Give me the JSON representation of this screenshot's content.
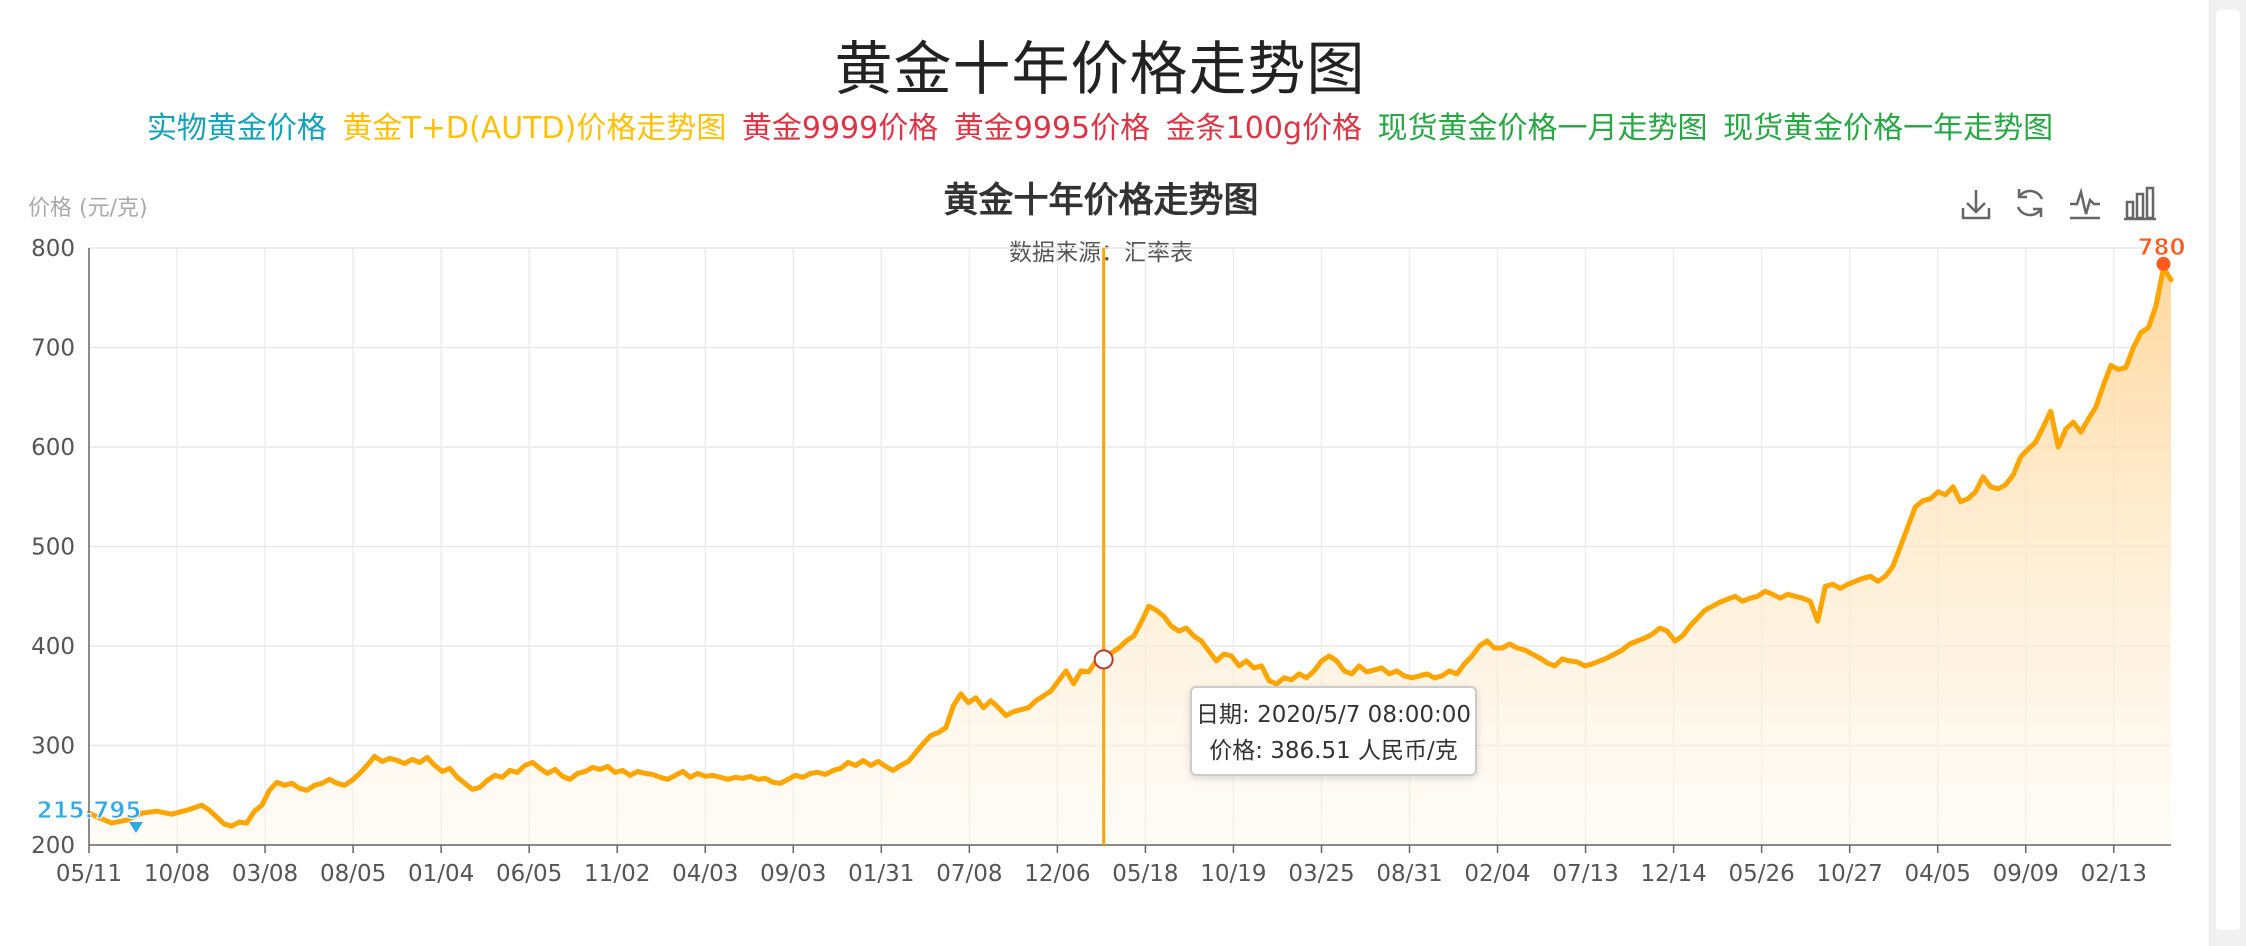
{
  "page": {
    "title": "黄金十年价格走势图",
    "links": [
      {
        "label": "实物黄金价格",
        "color": "#17a2b8"
      },
      {
        "label": "黄金T+D(AUTD)价格走势图",
        "color": "#ffc107"
      },
      {
        "label": "黄金9999价格",
        "color": "#dc3545"
      },
      {
        "label": "黄金9995价格",
        "color": "#dc3545"
      },
      {
        "label": "金条100g价格",
        "color": "#dc3545"
      },
      {
        "label": "现货黄金价格一月走势图",
        "color": "#28a745"
      },
      {
        "label": "现货黄金价格一年走势图",
        "color": "#28a745"
      }
    ]
  },
  "toolbar": {
    "icons": [
      "download-icon",
      "refresh-icon",
      "line-chart-icon",
      "bar-chart-icon"
    ]
  },
  "tooltip": {
    "date_line": "日期: 2020/5/7 08:00:00",
    "value_line": "价格: 386.51 人民币/克"
  },
  "chart_data": {
    "type": "area",
    "title": "黄金十年价格走势图",
    "subtitle": "数据来源：汇率表",
    "ylabel": "价格 (元/克)",
    "xlabel": "",
    "ylim": [
      200,
      800
    ],
    "yticks": [
      200,
      300,
      400,
      500,
      600,
      700,
      800
    ],
    "xtick_labels": [
      "05/11",
      "10/08",
      "03/08",
      "08/05",
      "01/04",
      "06/05",
      "11/02",
      "04/03",
      "09/03",
      "01/31",
      "07/08",
      "12/06",
      "05/18",
      "10/19",
      "03/25",
      "08/31",
      "02/04",
      "07/13",
      "12/14",
      "05/26",
      "10/27",
      "04/05",
      "09/09",
      "02/13"
    ],
    "grid": true,
    "line_color": "#ffa500",
    "area_color": "#ffd699",
    "series": [
      {
        "values": [
          [
            0,
            232
          ],
          [
            3,
            222
          ],
          [
            5,
            225
          ],
          [
            7,
            232
          ],
          [
            9,
            234
          ],
          [
            11,
            231
          ],
          [
            13,
            235
          ],
          [
            15,
            240
          ],
          [
            16,
            235
          ],
          [
            17,
            228
          ],
          [
            18,
            221
          ],
          [
            19,
            219
          ],
          [
            20,
            223
          ],
          [
            21,
            222
          ],
          [
            22,
            234
          ],
          [
            23,
            240
          ],
          [
            24,
            255
          ],
          [
            25,
            263
          ],
          [
            26,
            260
          ],
          [
            27,
            262
          ],
          [
            28,
            257
          ],
          [
            29,
            255
          ],
          [
            30,
            260
          ],
          [
            31,
            262
          ],
          [
            32,
            266
          ],
          [
            33,
            262
          ],
          [
            34,
            260
          ],
          [
            35,
            265
          ],
          [
            36,
            272
          ],
          [
            37,
            280
          ],
          [
            38,
            289
          ],
          [
            39,
            284
          ],
          [
            40,
            287
          ],
          [
            41,
            285
          ],
          [
            42,
            282
          ],
          [
            43,
            286
          ],
          [
            44,
            283
          ],
          [
            45,
            288
          ],
          [
            46,
            280
          ],
          [
            47,
            274
          ],
          [
            48,
            277
          ],
          [
            49,
            268
          ],
          [
            50,
            262
          ],
          [
            51,
            256
          ],
          [
            52,
            258
          ],
          [
            53,
            265
          ],
          [
            54,
            270
          ],
          [
            55,
            268
          ],
          [
            56,
            275
          ],
          [
            57,
            273
          ],
          [
            58,
            280
          ],
          [
            59,
            283
          ],
          [
            60,
            277
          ],
          [
            61,
            272
          ],
          [
            62,
            276
          ],
          [
            63,
            269
          ],
          [
            64,
            266
          ],
          [
            65,
            272
          ],
          [
            66,
            274
          ],
          [
            67,
            278
          ],
          [
            68,
            276
          ],
          [
            69,
            279
          ],
          [
            70,
            273
          ],
          [
            71,
            275
          ],
          [
            72,
            270
          ],
          [
            73,
            274
          ],
          [
            74,
            272
          ],
          [
            75,
            271
          ],
          [
            76,
            268
          ],
          [
            77,
            266
          ],
          [
            78,
            270
          ],
          [
            79,
            274
          ],
          [
            80,
            268
          ],
          [
            81,
            272
          ],
          [
            82,
            269
          ],
          [
            83,
            270
          ],
          [
            84,
            268
          ],
          [
            85,
            266
          ],
          [
            86,
            268
          ],
          [
            87,
            267
          ],
          [
            88,
            269
          ],
          [
            89,
            266
          ],
          [
            90,
            267
          ],
          [
            91,
            263
          ],
          [
            92,
            262
          ],
          [
            93,
            266
          ],
          [
            94,
            270
          ],
          [
            95,
            268
          ],
          [
            96,
            272
          ],
          [
            97,
            273
          ],
          [
            98,
            271
          ],
          [
            99,
            275
          ],
          [
            100,
            277
          ],
          [
            101,
            283
          ],
          [
            102,
            280
          ],
          [
            103,
            285
          ],
          [
            104,
            280
          ],
          [
            105,
            284
          ],
          [
            106,
            279
          ],
          [
            107,
            275
          ],
          [
            108,
            280
          ],
          [
            109,
            284
          ],
          [
            110,
            293
          ],
          [
            111,
            302
          ],
          [
            112,
            310
          ],
          [
            113,
            313
          ],
          [
            114,
            318
          ],
          [
            115,
            340
          ],
          [
            116,
            352
          ],
          [
            117,
            343
          ],
          [
            118,
            348
          ],
          [
            119,
            338
          ],
          [
            120,
            345
          ],
          [
            121,
            338
          ],
          [
            122,
            330
          ],
          [
            123,
            334
          ],
          [
            124,
            336
          ],
          [
            125,
            338
          ],
          [
            126,
            345
          ],
          [
            127,
            350
          ],
          [
            128,
            355
          ],
          [
            129,
            365
          ],
          [
            130,
            375
          ],
          [
            131,
            362
          ],
          [
            132,
            375
          ],
          [
            133,
            374
          ],
          [
            134,
            385
          ],
          [
            135,
            386.51
          ],
          [
            136,
            393
          ],
          [
            137,
            398
          ],
          [
            138,
            405
          ],
          [
            139,
            410
          ],
          [
            140,
            424
          ],
          [
            141,
            440
          ],
          [
            142,
            436
          ],
          [
            143,
            430
          ],
          [
            144,
            420
          ],
          [
            145,
            415
          ],
          [
            146,
            418
          ],
          [
            147,
            410
          ],
          [
            148,
            405
          ],
          [
            149,
            395
          ],
          [
            150,
            385
          ],
          [
            151,
            392
          ],
          [
            152,
            390
          ],
          [
            153,
            380
          ],
          [
            154,
            385
          ],
          [
            155,
            378
          ],
          [
            156,
            380
          ],
          [
            157,
            365
          ],
          [
            158,
            362
          ],
          [
            159,
            368
          ],
          [
            160,
            366
          ],
          [
            161,
            372
          ],
          [
            162,
            368
          ],
          [
            163,
            375
          ],
          [
            164,
            385
          ],
          [
            165,
            390
          ],
          [
            166,
            385
          ],
          [
            167,
            375
          ],
          [
            168,
            372
          ],
          [
            169,
            380
          ],
          [
            170,
            374
          ],
          [
            171,
            376
          ],
          [
            172,
            378
          ],
          [
            173,
            372
          ],
          [
            174,
            375
          ],
          [
            175,
            370
          ],
          [
            176,
            368
          ],
          [
            177,
            370
          ],
          [
            178,
            372
          ],
          [
            179,
            368
          ],
          [
            180,
            370
          ],
          [
            181,
            375
          ],
          [
            182,
            372
          ],
          [
            183,
            382
          ],
          [
            184,
            390
          ],
          [
            185,
            400
          ],
          [
            186,
            405
          ],
          [
            187,
            398
          ],
          [
            188,
            398
          ],
          [
            189,
            402
          ],
          [
            190,
            398
          ],
          [
            191,
            396
          ],
          [
            192,
            392
          ],
          [
            193,
            388
          ],
          [
            194,
            383
          ],
          [
            195,
            380
          ],
          [
            196,
            387
          ],
          [
            197,
            385
          ],
          [
            198,
            384
          ],
          [
            199,
            380
          ],
          [
            200,
            382
          ],
          [
            201,
            385
          ],
          [
            202,
            388
          ],
          [
            203,
            392
          ],
          [
            204,
            396
          ],
          [
            205,
            402
          ],
          [
            206,
            405
          ],
          [
            207,
            408
          ],
          [
            208,
            412
          ],
          [
            209,
            418
          ],
          [
            210,
            415
          ],
          [
            211,
            405
          ],
          [
            212,
            410
          ],
          [
            213,
            420
          ],
          [
            214,
            428
          ],
          [
            215,
            436
          ],
          [
            216,
            440
          ],
          [
            217,
            444
          ],
          [
            218,
            447
          ],
          [
            219,
            450
          ],
          [
            220,
            445
          ],
          [
            221,
            448
          ],
          [
            222,
            450
          ],
          [
            223,
            455
          ],
          [
            224,
            452
          ],
          [
            225,
            448
          ],
          [
            226,
            452
          ],
          [
            227,
            450
          ],
          [
            228,
            448
          ],
          [
            229,
            445
          ],
          [
            230,
            425
          ],
          [
            231,
            460
          ],
          [
            232,
            462
          ],
          [
            233,
            458
          ],
          [
            234,
            462
          ],
          [
            235,
            465
          ],
          [
            236,
            468
          ],
          [
            237,
            470
          ],
          [
            238,
            465
          ],
          [
            239,
            470
          ],
          [
            240,
            480
          ],
          [
            241,
            500
          ],
          [
            242,
            520
          ],
          [
            243,
            540
          ],
          [
            244,
            546
          ],
          [
            245,
            548
          ],
          [
            246,
            555
          ],
          [
            247,
            552
          ],
          [
            248,
            560
          ],
          [
            249,
            545
          ],
          [
            250,
            548
          ],
          [
            251,
            555
          ],
          [
            252,
            570
          ],
          [
            253,
            560
          ],
          [
            254,
            558
          ],
          [
            255,
            562
          ],
          [
            256,
            572
          ],
          [
            257,
            590
          ],
          [
            258,
            598
          ],
          [
            259,
            605
          ],
          [
            260,
            620
          ],
          [
            261,
            636
          ],
          [
            262,
            600
          ],
          [
            263,
            618
          ],
          [
            264,
            625
          ],
          [
            265,
            615
          ],
          [
            266,
            628
          ],
          [
            267,
            640
          ],
          [
            268,
            662
          ],
          [
            269,
            682
          ],
          [
            270,
            678
          ],
          [
            271,
            680
          ],
          [
            272,
            700
          ],
          [
            273,
            715
          ],
          [
            274,
            720
          ],
          [
            275,
            742
          ],
          [
            276,
            780
          ],
          [
            277,
            768
          ]
        ]
      }
    ],
    "x_max_index": 277,
    "annotations": {
      "min_label": "215.795",
      "max_label": "780",
      "highlight_index": 135,
      "highlight_value": 386.51,
      "highlight_date": "2020/5/7 08:00:00"
    }
  }
}
